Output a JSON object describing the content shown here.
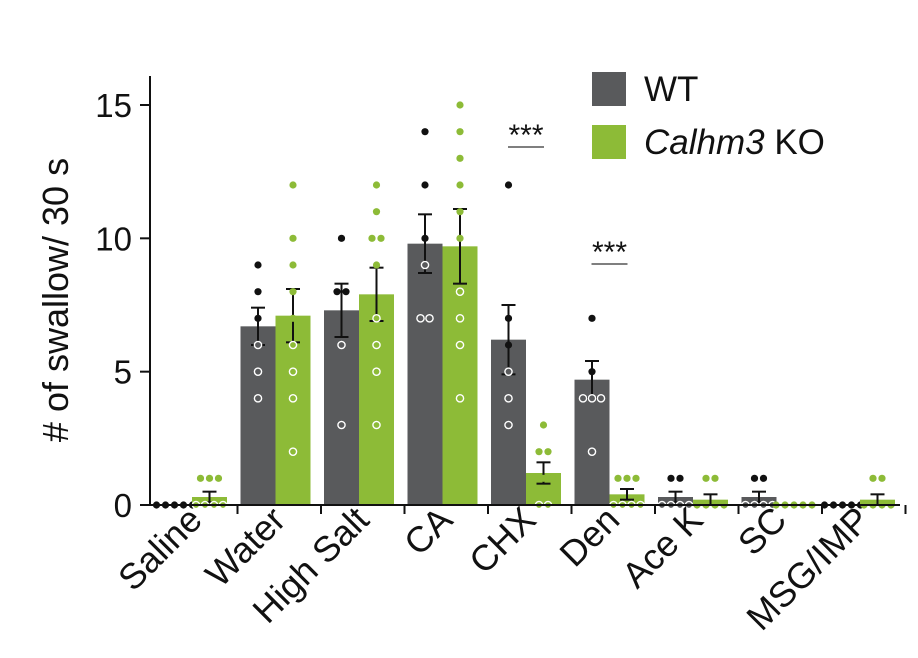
{
  "chart_data": {
    "type": "bar",
    "ylabel": "# of swallow/ 30 s",
    "ylim": [
      0,
      16
    ],
    "yticks": [
      0,
      5,
      10,
      15
    ],
    "categories": [
      "Saline",
      "Water",
      "High Salt",
      "CA",
      "CHX",
      "Den",
      "Ace K",
      "SC",
      "MSG/IMP"
    ],
    "series": [
      {
        "name": "WT",
        "color": "#595a5c",
        "values": [
          0,
          6.7,
          7.3,
          9.8,
          6.2,
          4.7,
          0.3,
          0.3,
          0
        ],
        "errors": [
          0,
          0.7,
          1.0,
          1.1,
          1.3,
          0.7,
          0.2,
          0.2,
          0
        ],
        "points": [
          [
            0,
            0,
            0,
            0,
            0
          ],
          [
            9,
            8,
            7,
            6,
            5,
            4
          ],
          [
            10,
            8,
            8,
            6,
            3
          ],
          [
            14,
            12,
            10,
            9,
            7,
            7
          ],
          [
            12,
            7,
            6,
            5,
            4,
            3
          ],
          [
            7,
            5,
            4,
            4,
            4,
            2
          ],
          [
            1,
            1,
            0,
            0,
            0,
            0
          ],
          [
            1,
            1,
            0,
            0,
            0,
            0
          ],
          [
            0,
            0,
            0,
            0,
            0
          ]
        ]
      },
      {
        "name": "Calhm3 KO",
        "color": "#8dbb37",
        "values": [
          0.3,
          7.1,
          7.9,
          9.7,
          1.2,
          0.4,
          0.2,
          0,
          0.2
        ],
        "errors": [
          0.2,
          1.0,
          1.0,
          1.4,
          0.4,
          0.2,
          0.2,
          0,
          0.2
        ],
        "points": [
          [
            1,
            1,
            1,
            0,
            0,
            0,
            0
          ],
          [
            12,
            10,
            9,
            8,
            7,
            6,
            5,
            4,
            2
          ],
          [
            12,
            11,
            10,
            10,
            9,
            7,
            6,
            5,
            3
          ],
          [
            15,
            14,
            13,
            12,
            11,
            10,
            8,
            7,
            6,
            4
          ],
          [
            3,
            2,
            2,
            1,
            1,
            1,
            0,
            0
          ],
          [
            1,
            1,
            1,
            0,
            0,
            0,
            0
          ],
          [
            1,
            1,
            0,
            0,
            0,
            0
          ],
          [
            0,
            0,
            0,
            0,
            0
          ],
          [
            1,
            1,
            0,
            0,
            0,
            0
          ]
        ]
      }
    ],
    "legend": {
      "position": "top-right",
      "entries": [
        {
          "label": "WT",
          "color": "#595a5c"
        },
        {
          "label_italic": "Calhm3",
          "label_rest": " KO",
          "color": "#8dbb37"
        }
      ]
    },
    "annotations": [
      {
        "text": "***",
        "category": "CHX"
      },
      {
        "text": "***",
        "category": "Den"
      }
    ]
  }
}
